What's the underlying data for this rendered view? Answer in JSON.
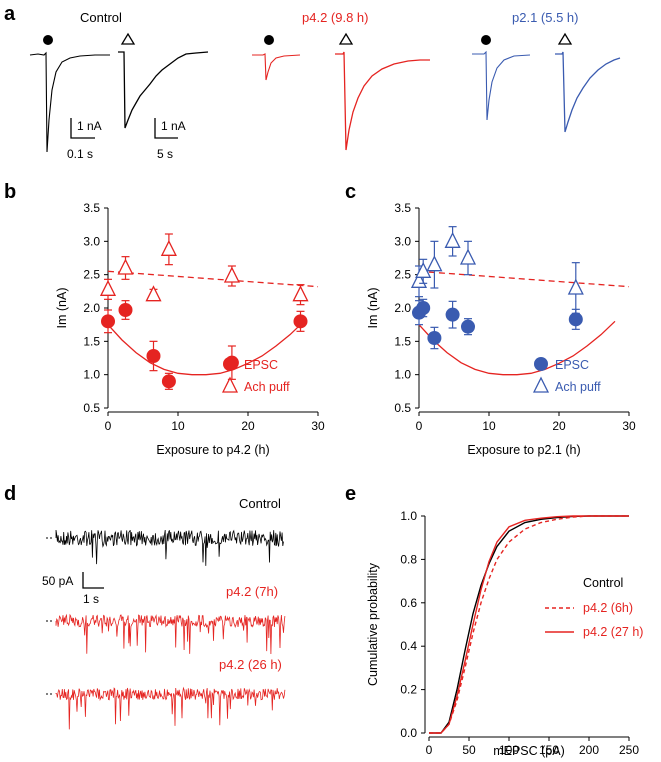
{
  "colors": {
    "control": "#000000",
    "p42": "#e52421",
    "p21": "#3a5bb0"
  },
  "panel_a": {
    "letter": "a",
    "control_label": "Control",
    "p42_label": "p4.2 (9.8 h)",
    "p21_label": "p2.1 (5.5 h)",
    "scalebar1_amp": "1 nA",
    "scalebar1_time": "0.1 s",
    "scalebar2_amp": "1 nA",
    "scalebar2_time": "5 s"
  },
  "panel_d": {
    "letter": "d",
    "trace_labels": [
      "Control",
      "p4.2 (7h)",
      "p4.2 (26 h)"
    ],
    "scalebar_amp": "50 pA",
    "scalebar_time": "1 s"
  },
  "chart_data": [
    {
      "panel": "b",
      "type": "scatter",
      "xlabel": "Exposure to p4.2 (h)",
      "ylabel": "Im (nA)",
      "xlim": [
        0,
        30
      ],
      "ylim": [
        0.5,
        3.5
      ],
      "xticks": [
        0,
        10,
        20,
        30
      ],
      "yticks": [
        0.5,
        1.0,
        1.5,
        2.0,
        2.5,
        3.0,
        3.5
      ],
      "series": [
        {
          "name": "EPSC",
          "marker": "circle",
          "filled": true,
          "x": [
            0,
            2.5,
            6.5,
            8.7,
            17.7,
            27.5
          ],
          "y": [
            1.8,
            1.97,
            1.28,
            0.9,
            1.18,
            1.8
          ],
          "err": [
            0.17,
            0.14,
            0.22,
            0.12,
            0.25,
            0.15
          ]
        },
        {
          "name": "Ach puff",
          "marker": "triangle",
          "filled": false,
          "x": [
            0,
            2.5,
            6.5,
            8.7,
            17.7,
            27.5
          ],
          "y": [
            2.28,
            2.6,
            2.2,
            2.88,
            2.48,
            2.2
          ],
          "err": [
            0.15,
            0.17,
            0.08,
            0.23,
            0.15,
            0.15
          ]
        }
      ],
      "fits": [
        {
          "name": "EPSC fit",
          "style": "solid",
          "x": [
            0,
            2,
            4,
            6,
            8,
            10,
            12,
            14,
            16,
            18,
            20,
            22,
            24,
            26,
            28
          ],
          "y": [
            1.75,
            1.52,
            1.33,
            1.18,
            1.08,
            1.02,
            1.0,
            1.0,
            1.02,
            1.08,
            1.17,
            1.28,
            1.43,
            1.6,
            1.8
          ]
        },
        {
          "name": "Ach puff fit",
          "style": "dashed",
          "x": [
            0,
            30
          ],
          "y": [
            2.55,
            2.32
          ]
        }
      ],
      "legend": {
        "placement": "bottom-right",
        "entries": [
          "EPSC",
          "Ach puff"
        ]
      }
    },
    {
      "panel": "c",
      "type": "scatter",
      "xlabel": "Exposure to p2.1 (h)",
      "ylabel": "Im (nA)",
      "xlim": [
        0,
        30
      ],
      "ylim": [
        0.5,
        3.5
      ],
      "xticks": [
        0,
        10,
        20,
        30
      ],
      "yticks": [
        0.5,
        1.0,
        1.5,
        2.0,
        2.5,
        3.0,
        3.5
      ],
      "series": [
        {
          "name": "EPSC",
          "marker": "circle",
          "filled": true,
          "x": [
            0,
            0.6,
            2.2,
            4.8,
            7.0,
            22.4
          ],
          "y": [
            1.93,
            2.0,
            1.55,
            1.9,
            1.72,
            1.83
          ],
          "err": [
            0.18,
            0.13,
            0.16,
            0.2,
            0.12,
            0.15
          ]
        },
        {
          "name": "Ach puff",
          "marker": "triangle",
          "filled": false,
          "x": [
            0,
            0.6,
            2.2,
            4.8,
            7.0,
            22.4
          ],
          "y": [
            2.4,
            2.55,
            2.65,
            3.0,
            2.75,
            2.3
          ],
          "err": [
            0.23,
            0.18,
            0.35,
            0.22,
            0.25,
            0.38
          ]
        }
      ],
      "fits": [
        {
          "name": "EPSC fit",
          "style": "solid",
          "x": [
            0,
            2,
            4,
            6,
            8,
            10,
            12,
            14,
            16,
            18,
            20,
            22,
            24,
            26,
            28
          ],
          "y": [
            1.75,
            1.52,
            1.33,
            1.18,
            1.08,
            1.02,
            1.0,
            1.0,
            1.02,
            1.08,
            1.17,
            1.28,
            1.43,
            1.6,
            1.8
          ]
        },
        {
          "name": "Ach puff fit",
          "style": "dashed",
          "x": [
            0,
            30
          ],
          "y": [
            2.55,
            2.32
          ]
        }
      ],
      "legend": {
        "placement": "bottom-right",
        "entries": [
          "EPSC",
          "Ach puff"
        ]
      }
    },
    {
      "panel": "e",
      "type": "line",
      "xlabel": "mEPSC (pA)",
      "ylabel": "Cumulative probability",
      "xlim": [
        0,
        250
      ],
      "ylim": [
        0,
        1.0
      ],
      "xticks": [
        0,
        50,
        100,
        150,
        200,
        250
      ],
      "yticks": [
        0.0,
        0.2,
        0.4,
        0.6,
        0.8,
        1.0
      ],
      "series": [
        {
          "name": "Control",
          "style": "solid",
          "x": [
            0,
            15,
            25,
            35,
            45,
            55,
            65,
            75,
            85,
            100,
            120,
            140,
            160,
            180,
            200,
            250
          ],
          "y": [
            0,
            0,
            0.05,
            0.2,
            0.38,
            0.55,
            0.68,
            0.78,
            0.86,
            0.93,
            0.97,
            0.985,
            0.993,
            0.998,
            1.0,
            1.0
          ]
        },
        {
          "name": "p4.2 (6h)",
          "style": "dashed",
          "x": [
            0,
            15,
            25,
            35,
            45,
            55,
            65,
            75,
            85,
            100,
            120,
            140,
            160,
            180,
            200,
            250
          ],
          "y": [
            0,
            0,
            0.04,
            0.15,
            0.3,
            0.46,
            0.6,
            0.71,
            0.8,
            0.88,
            0.94,
            0.97,
            0.985,
            0.995,
            1.0,
            1.0
          ]
        },
        {
          "name": "p4.2 (27 h)",
          "style": "solid",
          "x": [
            0,
            15,
            25,
            35,
            45,
            55,
            65,
            75,
            85,
            100,
            120,
            140,
            160,
            180,
            200,
            250
          ],
          "y": [
            0,
            0,
            0.04,
            0.17,
            0.33,
            0.5,
            0.66,
            0.79,
            0.88,
            0.95,
            0.98,
            0.99,
            0.997,
            1.0,
            1.0,
            1.0
          ]
        }
      ],
      "legend": {
        "placement": "right",
        "entries": [
          "Control",
          "p4.2 (6h)",
          "p4.2 (27 h)"
        ]
      }
    }
  ]
}
